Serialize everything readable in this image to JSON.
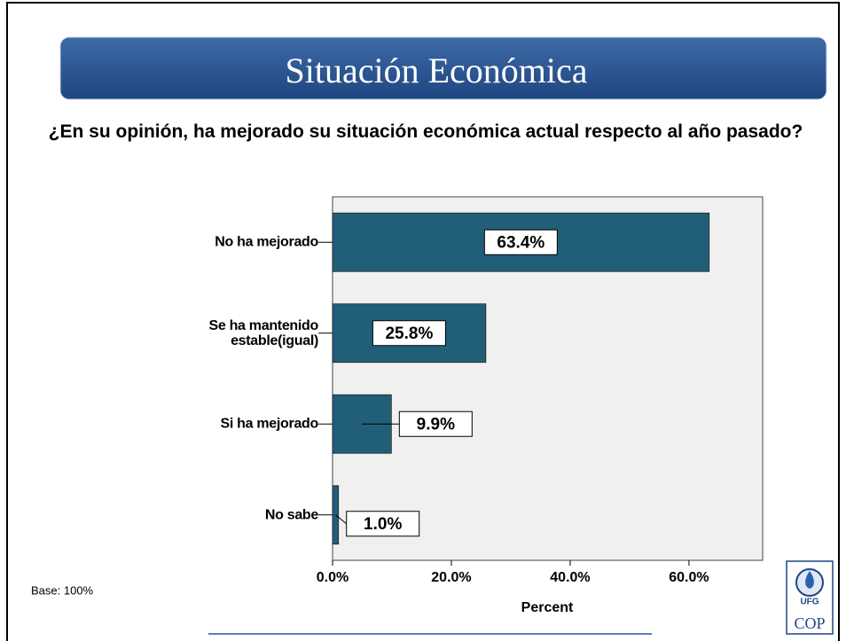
{
  "title": "Situación Económica",
  "chart_data": {
    "type": "bar",
    "orientation": "horizontal",
    "subtitle": "¿En su opinión, ha mejorado su situación económica actual respecto al año pasado?",
    "categories": [
      "No ha mejorado",
      "Se ha mantenido estable(igual)",
      "Si ha mejorado",
      "No sabe"
    ],
    "values": [
      63.4,
      25.8,
      9.9,
      1.0
    ],
    "value_labels": [
      "63.4%",
      "25.8%",
      "9.9%",
      "1.0%"
    ],
    "color": "#215f78",
    "xlim": [
      0,
      72.4
    ],
    "xticks": [
      {
        "value": 0,
        "label": "0.0%"
      },
      {
        "value": 20,
        "label": "20.0%"
      },
      {
        "value": 40,
        "label": "40.0%"
      },
      {
        "value": 60,
        "label": "60.0%"
      }
    ],
    "xlabel": "Percent",
    "note": "Base: 100%"
  },
  "logo": {
    "top": "UFG",
    "bottom": "COP"
  }
}
